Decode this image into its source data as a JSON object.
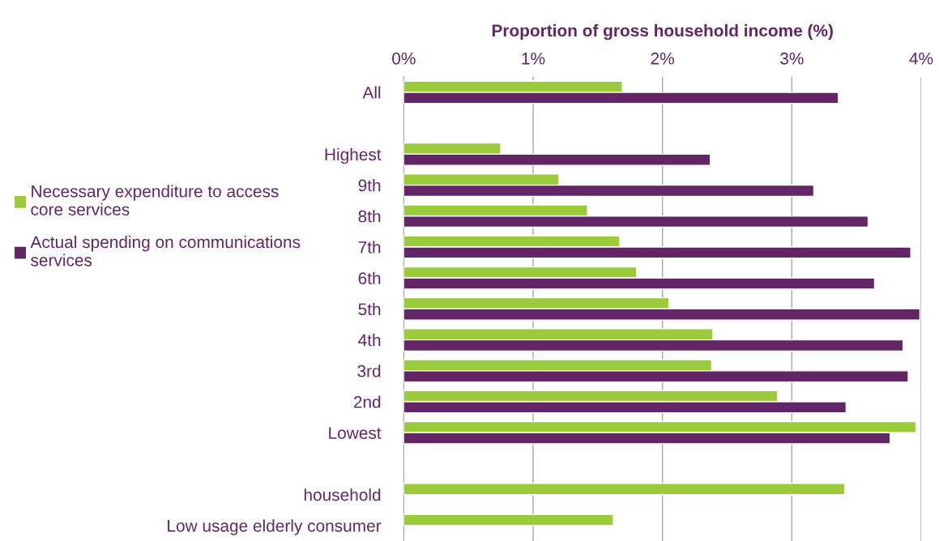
{
  "chart_data": {
    "type": "bar",
    "orientation": "horizontal",
    "xlabel": "Proportion of gross household income (%)",
    "categories": [
      "All",
      null,
      "Highest",
      "9th",
      "8th",
      "7th",
      "6th",
      "5th",
      "4th",
      "3rd",
      "2nd",
      "Lowest",
      null,
      "household",
      "Low usage elderly consumer"
    ],
    "series": [
      {
        "name": "Necessary expenditure to access\ncore services",
        "color": "#9bcb3b",
        "values": [
          1.69,
          null,
          0.75,
          1.2,
          1.42,
          1.67,
          1.8,
          2.05,
          2.39,
          2.38,
          2.89,
          3.96,
          null,
          3.41,
          1.62
        ]
      },
      {
        "name": "Actual spending on communications\nservices",
        "color": "#622565",
        "values": [
          3.36,
          null,
          2.37,
          3.17,
          3.59,
          3.92,
          3.64,
          3.99,
          3.86,
          3.9,
          3.42,
          3.76,
          null,
          null,
          null
        ]
      }
    ],
    "xlim": [
      0,
      4
    ],
    "xticks": [
      {
        "value": 0,
        "label": "0%"
      },
      {
        "value": 1,
        "label": "1%"
      },
      {
        "value": 2,
        "label": "2%"
      },
      {
        "value": 3,
        "label": "3%"
      },
      {
        "value": 4,
        "label": "4%"
      }
    ],
    "grid": "x",
    "legend": "left"
  }
}
